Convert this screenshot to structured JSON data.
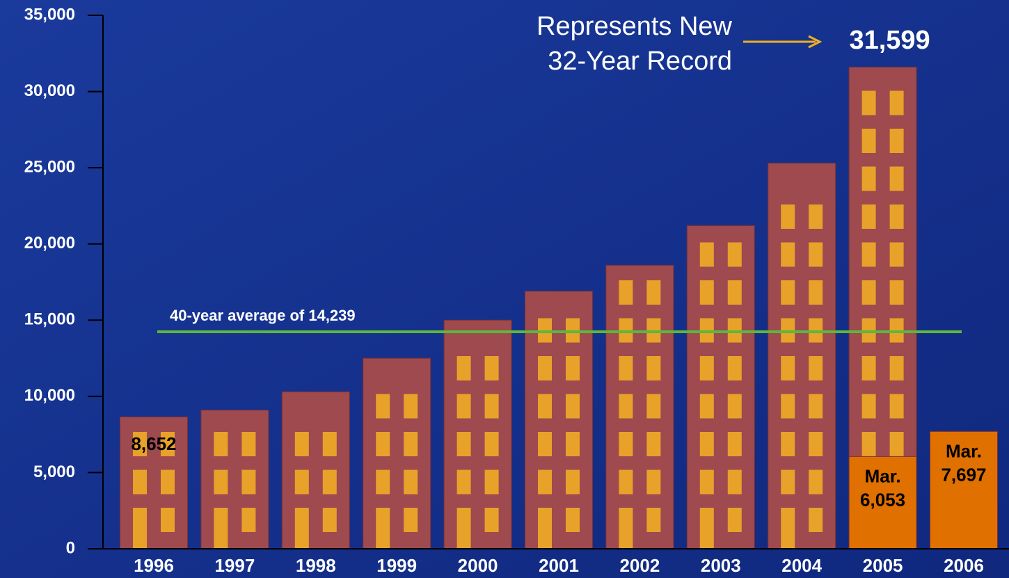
{
  "chart_data": {
    "type": "bar",
    "categories": [
      "1996",
      "1997",
      "1998",
      "1999",
      "2000",
      "2001",
      "2002",
      "2003",
      "2004",
      "2005",
      "2006"
    ],
    "series": [
      {
        "color": "#9e4a4e",
        "values": [
          8652,
          9100,
          10300,
          12500,
          15000,
          16900,
          18600,
          21200,
          25300,
          31599,
          null
        ],
        "value_labels": [
          "8,652",
          null,
          null,
          null,
          null,
          null,
          null,
          null,
          null,
          "31,599",
          null
        ]
      },
      {
        "color": "#e07000",
        "values": [
          null,
          null,
          null,
          null,
          null,
          null,
          null,
          null,
          null,
          6053,
          7697
        ],
        "value_labels": [
          null,
          null,
          null,
          null,
          null,
          null,
          null,
          null,
          null,
          "Mar. 6,053",
          "Mar. 7,697"
        ]
      }
    ],
    "ylim": [
      0,
      35000
    ],
    "yticks": [
      0,
      {
        "value": 5000,
        "label": "5,000"
      },
      {
        "value": 10000,
        "label": "10,000"
      },
      {
        "value": 15000,
        "label": "15,000"
      },
      {
        "value": 20000,
        "label": "20,000"
      },
      {
        "value": 25000,
        "label": "25,000"
      },
      {
        "value": 30000,
        "label": "30,000"
      },
      {
        "value": 35000,
        "label": "35,000"
      }
    ],
    "average": {
      "value": 14239,
      "label": "40-year average of 14,239",
      "color": "#5cb83c"
    },
    "annotation": [
      "Represents New",
      "32-Year Record"
    ]
  }
}
